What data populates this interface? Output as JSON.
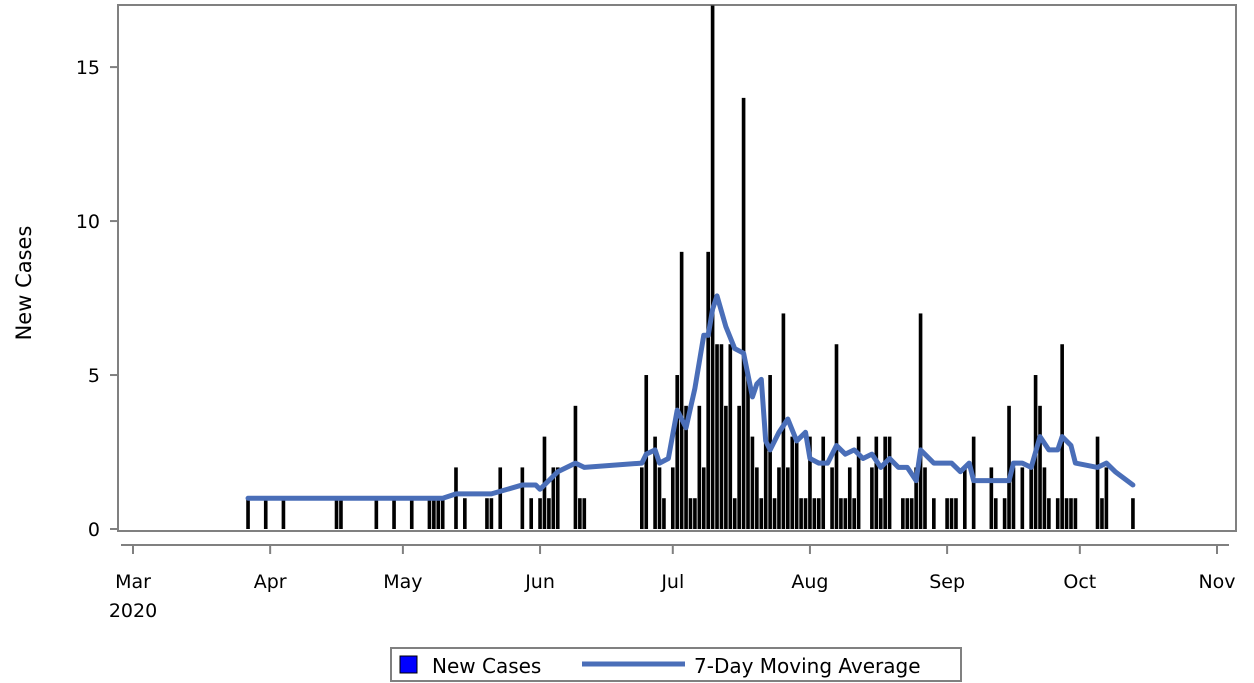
{
  "chart_data": {
    "type": "bar",
    "ylabel": "New Cases",
    "ylim": [
      0,
      17
    ],
    "y_ticks": [
      0,
      5,
      10,
      15
    ],
    "xlim": [
      "2020-03-01",
      "2020-11-01"
    ],
    "x_ticks": [
      {
        "date": "2020-03-01",
        "label": "Mar",
        "sublabel": "2020"
      },
      {
        "date": "2020-04-01",
        "label": "Apr"
      },
      {
        "date": "2020-05-01",
        "label": "May"
      },
      {
        "date": "2020-06-01",
        "label": "Jun"
      },
      {
        "date": "2020-07-01",
        "label": "Jul"
      },
      {
        "date": "2020-08-01",
        "label": "Aug"
      },
      {
        "date": "2020-09-01",
        "label": "Sep"
      },
      {
        "date": "2020-10-01",
        "label": "Oct"
      },
      {
        "date": "2020-11-01",
        "label": "Nov"
      }
    ],
    "series": [
      {
        "name": "New Cases",
        "type": "bar",
        "color": "#000000",
        "legend_color": "#0000ff",
        "points": [
          [
            "2020-03-27",
            1
          ],
          [
            "2020-03-31",
            1
          ],
          [
            "2020-04-04",
            1
          ],
          [
            "2020-04-16",
            1
          ],
          [
            "2020-04-17",
            1
          ],
          [
            "2020-04-25",
            1
          ],
          [
            "2020-04-29",
            1
          ],
          [
            "2020-05-03",
            1
          ],
          [
            "2020-05-07",
            1
          ],
          [
            "2020-05-08",
            1
          ],
          [
            "2020-05-09",
            1
          ],
          [
            "2020-05-10",
            1
          ],
          [
            "2020-05-13",
            2
          ],
          [
            "2020-05-15",
            1
          ],
          [
            "2020-05-20",
            1
          ],
          [
            "2020-05-21",
            1
          ],
          [
            "2020-05-23",
            2
          ],
          [
            "2020-05-28",
            2
          ],
          [
            "2020-05-30",
            1
          ],
          [
            "2020-06-01",
            1
          ],
          [
            "2020-06-02",
            3
          ],
          [
            "2020-06-03",
            1
          ],
          [
            "2020-06-04",
            2
          ],
          [
            "2020-06-05",
            2
          ],
          [
            "2020-06-09",
            4
          ],
          [
            "2020-06-10",
            1
          ],
          [
            "2020-06-11",
            1
          ],
          [
            "2020-06-24",
            2
          ],
          [
            "2020-06-25",
            5
          ],
          [
            "2020-06-27",
            3
          ],
          [
            "2020-06-28",
            2
          ],
          [
            "2020-06-29",
            1
          ],
          [
            "2020-07-01",
            2
          ],
          [
            "2020-07-02",
            5
          ],
          [
            "2020-07-03",
            9
          ],
          [
            "2020-07-04",
            4
          ],
          [
            "2020-07-05",
            1
          ],
          [
            "2020-07-06",
            1
          ],
          [
            "2020-07-07",
            4
          ],
          [
            "2020-07-08",
            2
          ],
          [
            "2020-07-09",
            9
          ],
          [
            "2020-07-10",
            17
          ],
          [
            "2020-07-11",
            6
          ],
          [
            "2020-07-12",
            6
          ],
          [
            "2020-07-13",
            4
          ],
          [
            "2020-07-14",
            6
          ],
          [
            "2020-07-15",
            1
          ],
          [
            "2020-07-16",
            4
          ],
          [
            "2020-07-17",
            14
          ],
          [
            "2020-07-18",
            5
          ],
          [
            "2020-07-19",
            3
          ],
          [
            "2020-07-20",
            2
          ],
          [
            "2020-07-21",
            1
          ],
          [
            "2020-07-22",
            3
          ],
          [
            "2020-07-23",
            5
          ],
          [
            "2020-07-24",
            1
          ],
          [
            "2020-07-25",
            2
          ],
          [
            "2020-07-26",
            7
          ],
          [
            "2020-07-27",
            2
          ],
          [
            "2020-07-28",
            3
          ],
          [
            "2020-07-29",
            3
          ],
          [
            "2020-07-30",
            1
          ],
          [
            "2020-07-31",
            1
          ],
          [
            "2020-08-01",
            3
          ],
          [
            "2020-08-02",
            1
          ],
          [
            "2020-08-03",
            1
          ],
          [
            "2020-08-04",
            3
          ],
          [
            "2020-08-06",
            2
          ],
          [
            "2020-08-07",
            6
          ],
          [
            "2020-08-08",
            1
          ],
          [
            "2020-08-09",
            1
          ],
          [
            "2020-08-10",
            2
          ],
          [
            "2020-08-11",
            1
          ],
          [
            "2020-08-12",
            3
          ],
          [
            "2020-08-15",
            2
          ],
          [
            "2020-08-16",
            3
          ],
          [
            "2020-08-17",
            1
          ],
          [
            "2020-08-18",
            3
          ],
          [
            "2020-08-19",
            3
          ],
          [
            "2020-08-22",
            1
          ],
          [
            "2020-08-23",
            1
          ],
          [
            "2020-08-24",
            1
          ],
          [
            "2020-08-25",
            2
          ],
          [
            "2020-08-26",
            7
          ],
          [
            "2020-08-27",
            2
          ],
          [
            "2020-08-29",
            1
          ],
          [
            "2020-09-01",
            1
          ],
          [
            "2020-09-02",
            1
          ],
          [
            "2020-09-03",
            1
          ],
          [
            "2020-09-05",
            2
          ],
          [
            "2020-09-07",
            3
          ],
          [
            "2020-09-11",
            2
          ],
          [
            "2020-09-12",
            1
          ],
          [
            "2020-09-14",
            1
          ],
          [
            "2020-09-15",
            4
          ],
          [
            "2020-09-16",
            2
          ],
          [
            "2020-09-18",
            2
          ],
          [
            "2020-09-20",
            2
          ],
          [
            "2020-09-21",
            5
          ],
          [
            "2020-09-22",
            4
          ],
          [
            "2020-09-23",
            2
          ],
          [
            "2020-09-24",
            1
          ],
          [
            "2020-09-26",
            1
          ],
          [
            "2020-09-27",
            6
          ],
          [
            "2020-09-28",
            1
          ],
          [
            "2020-09-29",
            1
          ],
          [
            "2020-09-30",
            1
          ],
          [
            "2020-10-05",
            3
          ],
          [
            "2020-10-06",
            1
          ],
          [
            "2020-10-07",
            2
          ],
          [
            "2020-10-13",
            1
          ]
        ]
      },
      {
        "name": "7-Day Moving Average",
        "type": "line",
        "color": "#4a6eb8",
        "points": [
          [
            "2020-03-27",
            1.0
          ],
          [
            "2020-05-10",
            1.0
          ],
          [
            "2020-05-13",
            1.14
          ],
          [
            "2020-05-21",
            1.14
          ],
          [
            "2020-05-28",
            1.43
          ],
          [
            "2020-05-31",
            1.43
          ],
          [
            "2020-06-01",
            1.29
          ],
          [
            "2020-06-05",
            1.86
          ],
          [
            "2020-06-09",
            2.14
          ],
          [
            "2020-06-11",
            2.0
          ],
          [
            "2020-06-24",
            2.14
          ],
          [
            "2020-06-25",
            2.43
          ],
          [
            "2020-06-27",
            2.57
          ],
          [
            "2020-06-28",
            2.14
          ],
          [
            "2020-06-30",
            2.29
          ],
          [
            "2020-07-02",
            3.86
          ],
          [
            "2020-07-04",
            3.29
          ],
          [
            "2020-07-06",
            4.57
          ],
          [
            "2020-07-08",
            6.29
          ],
          [
            "2020-07-09",
            6.29
          ],
          [
            "2020-07-10",
            7.14
          ],
          [
            "2020-07-11",
            7.57
          ],
          [
            "2020-07-13",
            6.57
          ],
          [
            "2020-07-15",
            5.86
          ],
          [
            "2020-07-17",
            5.71
          ],
          [
            "2020-07-19",
            4.29
          ],
          [
            "2020-07-20",
            4.71
          ],
          [
            "2020-07-21",
            4.86
          ],
          [
            "2020-07-22",
            2.86
          ],
          [
            "2020-07-23",
            2.57
          ],
          [
            "2020-07-25",
            3.14
          ],
          [
            "2020-07-27",
            3.57
          ],
          [
            "2020-07-29",
            2.86
          ],
          [
            "2020-07-31",
            3.14
          ],
          [
            "2020-08-01",
            2.29
          ],
          [
            "2020-08-03",
            2.14
          ],
          [
            "2020-08-05",
            2.14
          ],
          [
            "2020-08-07",
            2.71
          ],
          [
            "2020-08-09",
            2.43
          ],
          [
            "2020-08-11",
            2.57
          ],
          [
            "2020-08-13",
            2.29
          ],
          [
            "2020-08-15",
            2.43
          ],
          [
            "2020-08-17",
            2.0
          ],
          [
            "2020-08-19",
            2.29
          ],
          [
            "2020-08-21",
            2.0
          ],
          [
            "2020-08-23",
            2.0
          ],
          [
            "2020-08-25",
            1.57
          ],
          [
            "2020-08-26",
            2.57
          ],
          [
            "2020-08-29",
            2.14
          ],
          [
            "2020-09-02",
            2.14
          ],
          [
            "2020-09-04",
            1.86
          ],
          [
            "2020-09-06",
            2.14
          ],
          [
            "2020-09-07",
            1.57
          ],
          [
            "2020-09-15",
            1.57
          ],
          [
            "2020-09-16",
            2.14
          ],
          [
            "2020-09-18",
            2.14
          ],
          [
            "2020-09-20",
            2.0
          ],
          [
            "2020-09-22",
            3.0
          ],
          [
            "2020-09-24",
            2.57
          ],
          [
            "2020-09-26",
            2.57
          ],
          [
            "2020-09-27",
            3.0
          ],
          [
            "2020-09-29",
            2.71
          ],
          [
            "2020-09-30",
            2.14
          ],
          [
            "2020-10-05",
            2.0
          ],
          [
            "2020-10-07",
            2.14
          ],
          [
            "2020-10-09",
            1.86
          ],
          [
            "2020-10-13",
            1.43
          ]
        ]
      }
    ],
    "legend": {
      "placement": "bottom",
      "items": [
        "New Cases",
        "7-Day Moving Average"
      ]
    },
    "grid": false
  }
}
